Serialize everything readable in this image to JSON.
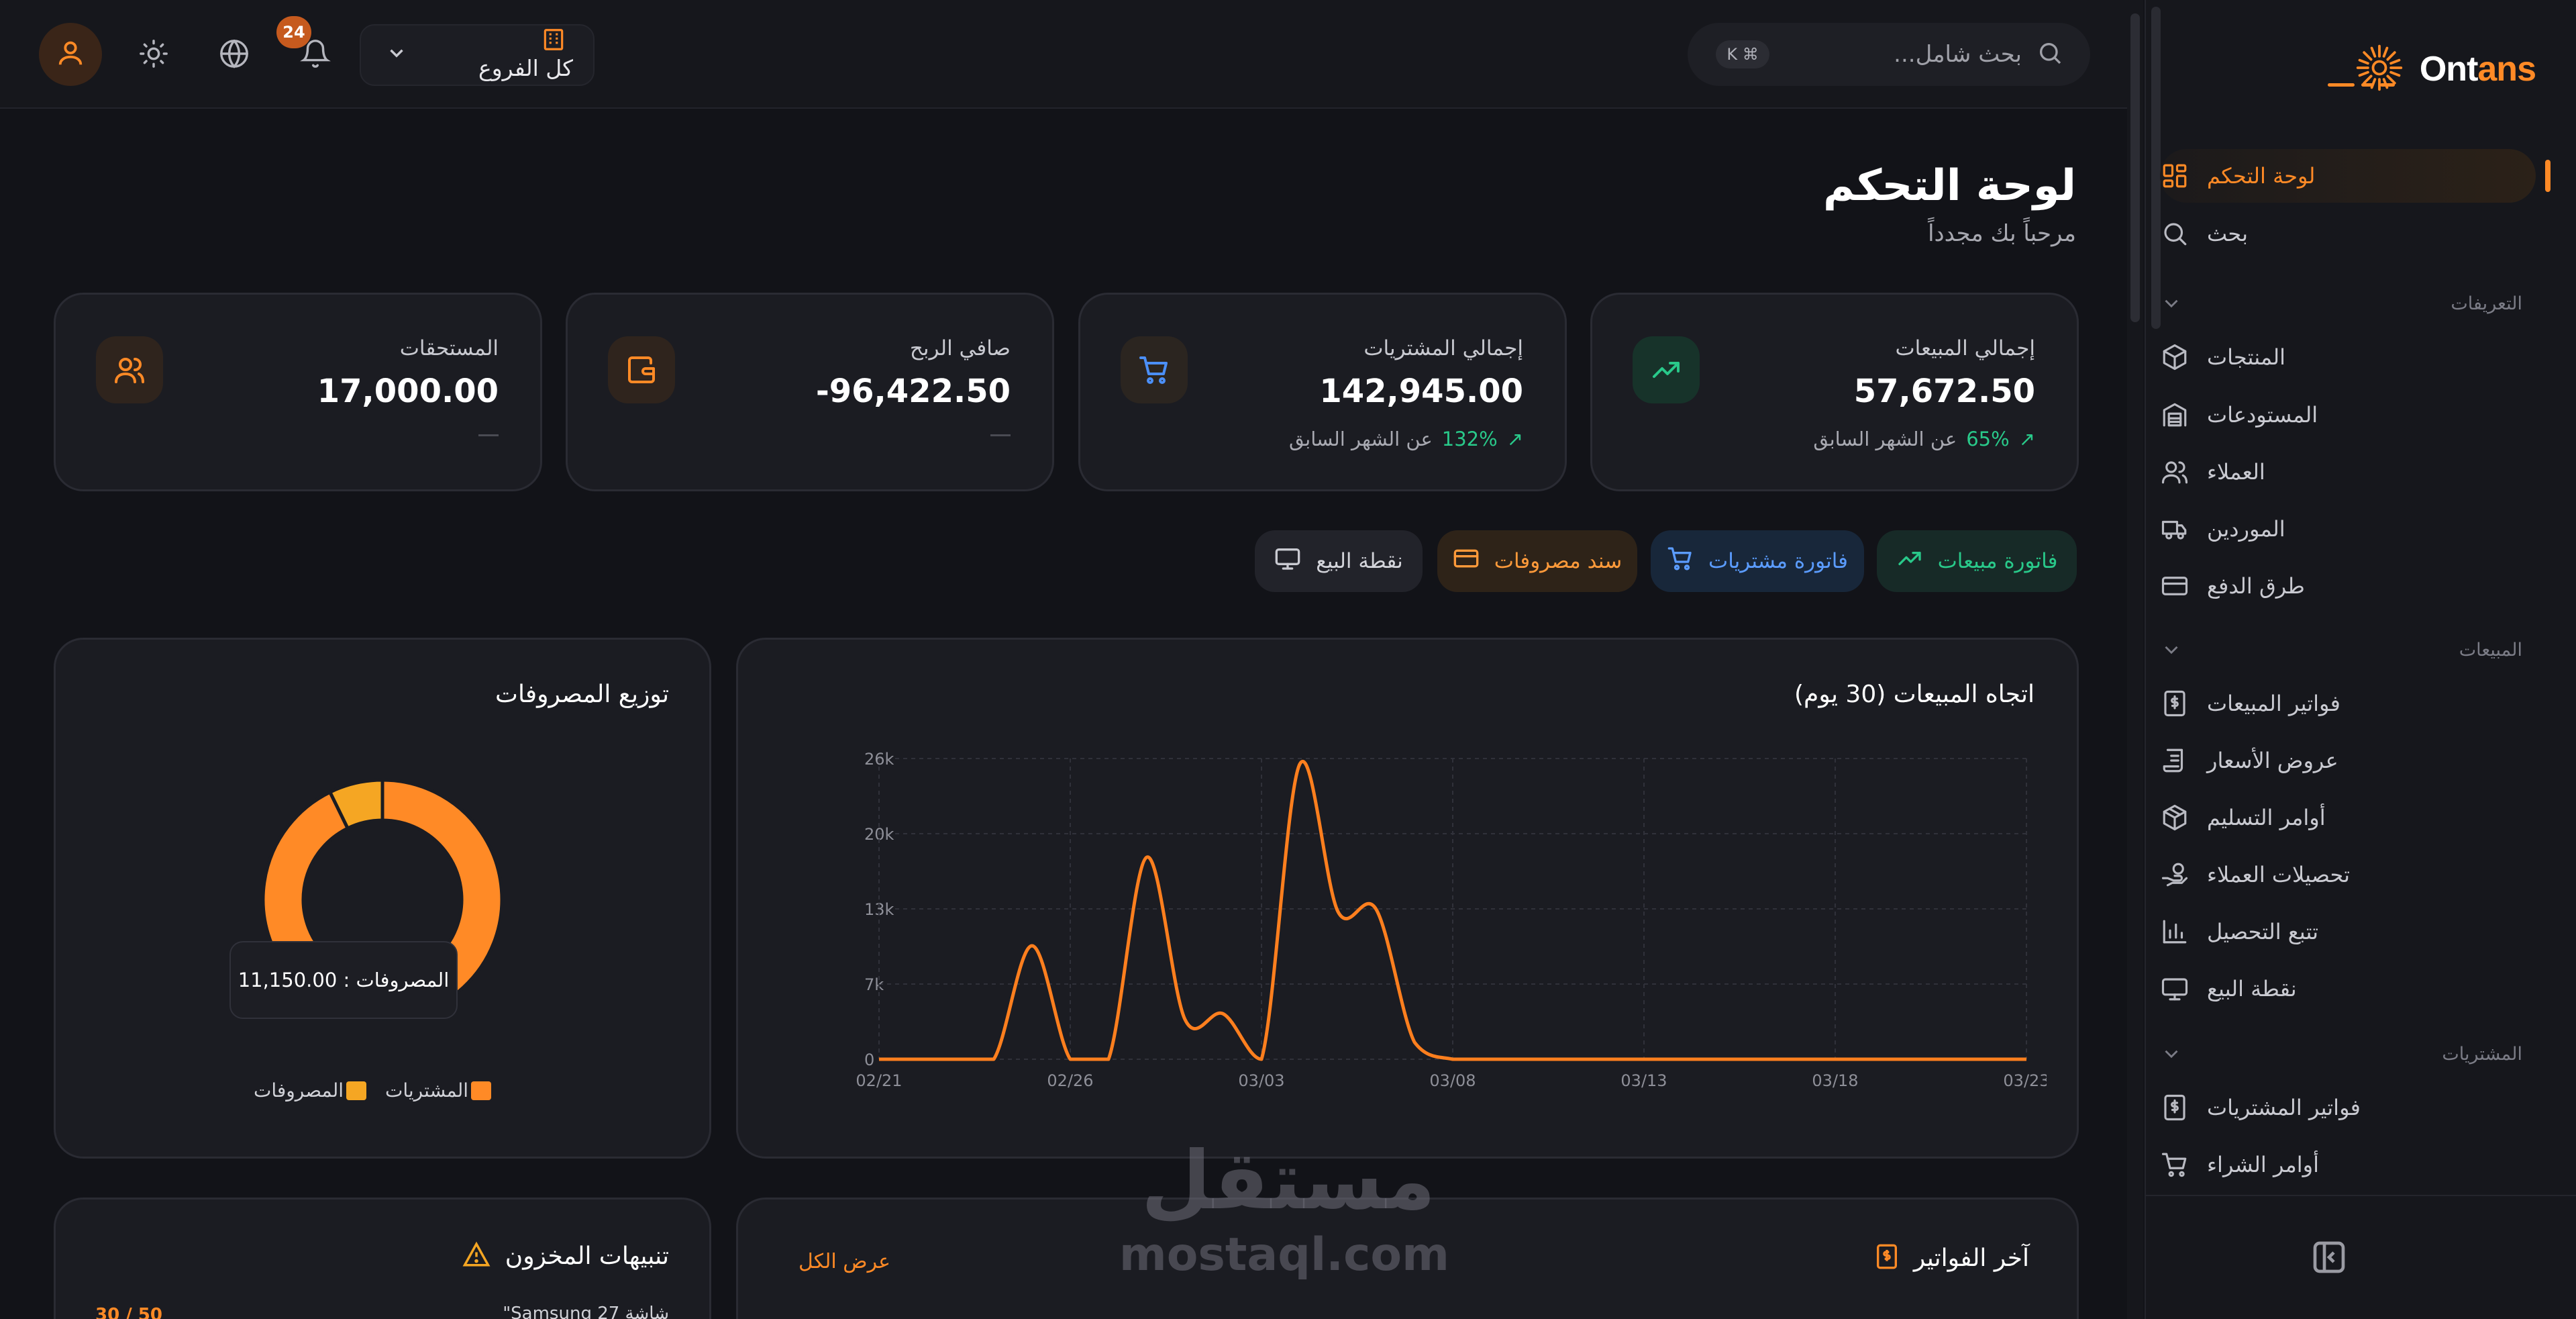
{
  "brand": {
    "part1": "Ont",
    "part2": "ans"
  },
  "header": {
    "search_placeholder": "بحث شامل...",
    "shortcut": "⌘ K",
    "branch_label": "كل الفروع",
    "notifications_count": "24"
  },
  "sidebar": {
    "items_top": [
      {
        "label": "لوحة التحكم",
        "icon": "dashboard-icon"
      },
      {
        "label": "بحث",
        "icon": "search-icon"
      }
    ],
    "sections": [
      {
        "title": "التعريفات",
        "items": [
          {
            "label": "المنتجات",
            "icon": "box-icon"
          },
          {
            "label": "المستودعات",
            "icon": "warehouse-icon"
          },
          {
            "label": "العملاء",
            "icon": "users-icon"
          },
          {
            "label": "الموردين",
            "icon": "truck-icon"
          },
          {
            "label": "طرق الدفع",
            "icon": "card-icon"
          }
        ]
      },
      {
        "title": "المبيعات",
        "items": [
          {
            "label": "فواتير المبيعات",
            "icon": "invoice-icon"
          },
          {
            "label": "عروض الأسعار",
            "icon": "scroll-icon"
          },
          {
            "label": "أوامر التسليم",
            "icon": "package-icon"
          },
          {
            "label": "تحصيلات العملاء",
            "icon": "hand-coin-icon"
          },
          {
            "label": "تتبع التحصيل",
            "icon": "bar-chart-icon"
          },
          {
            "label": "نقطة البيع",
            "icon": "monitor-icon"
          }
        ]
      },
      {
        "title": "المشتريات",
        "items": [
          {
            "label": "فواتير المشتريات",
            "icon": "invoice-icon"
          },
          {
            "label": "أوامر الشراء",
            "icon": "cart-icon"
          }
        ]
      }
    ]
  },
  "page": {
    "title": "لوحة التحكم",
    "subtitle": "مرحباً بك مجدداً"
  },
  "kpis": [
    {
      "label": "إجمالي المبيعات",
      "value": "57,672.50",
      "change": "65%",
      "change_suffix": "عن الشهر السابق",
      "icon": "trending-up-icon",
      "color": "#29c98a"
    },
    {
      "label": "إجمالي المشتريات",
      "value": "142,945.00",
      "change": "132%",
      "change_suffix": "عن الشهر السابق",
      "icon": "cart-icon",
      "color": "#4b8ff7"
    },
    {
      "label": "صافي الربح",
      "value": "-96,422.50",
      "change": "",
      "change_suffix": "",
      "icon": "wallet-icon",
      "color": "#ff8a26"
    },
    {
      "label": "المستحقات",
      "value": "17,000.00",
      "change": "",
      "change_suffix": "",
      "icon": "users-icon",
      "color": "#ff8a26"
    }
  ],
  "quick_actions": [
    {
      "label": "فاتورة مبيعات",
      "icon": "trending-up-icon",
      "color": "#29c98a"
    },
    {
      "label": "فاتورة مشتريات",
      "icon": "cart-icon",
      "color": "#5b9cff"
    },
    {
      "label": "سند مصروفات",
      "icon": "card-icon",
      "color": "#ff9a3a"
    },
    {
      "label": "نقطة البيع",
      "icon": "monitor-icon",
      "color": "#c9cad1"
    }
  ],
  "sales_trend": {
    "title": "اتجاه المبيعات (30 يوم)"
  },
  "expenses": {
    "title": "توزيع المصروفات",
    "tooltip": "المصروفات : 11,150.00",
    "legend": [
      {
        "label": "المشتريات",
        "color": "#ff8a26"
      },
      {
        "label": "المصروفات",
        "color": "#f5a623"
      }
    ]
  },
  "stock_alerts": {
    "title": "تنبيهات المخزون",
    "first_item": "شاشة Samsung 27\"",
    "first_qty": "50 / 30"
  },
  "latest_invoices": {
    "title": "آخر الفواتير",
    "view_all": "عرض الكل"
  },
  "watermark": {
    "line1": "مستقل",
    "line2": "mostaql.com"
  },
  "chart_data": [
    {
      "type": "line",
      "title": "اتجاه المبيعات (30 يوم)",
      "x_tick_labels": [
        "02/21",
        "02/26",
        "03/03",
        "03/08",
        "03/13",
        "03/18",
        "03/23"
      ],
      "y_tick_labels": [
        "0",
        "7k",
        "13k",
        "20k",
        "26k"
      ],
      "ylim": [
        0,
        26500
      ],
      "x": [
        "02/21",
        "02/22",
        "02/23",
        "02/24",
        "02/25",
        "02/26",
        "02/27",
        "02/28",
        "03/01",
        "03/02",
        "03/03",
        "03/04",
        "03/05",
        "03/06",
        "03/07",
        "03/08",
        "03/09",
        "03/10",
        "03/11",
        "03/12",
        "03/13",
        "03/14",
        "03/15",
        "03/16",
        "03/17",
        "03/18",
        "03/19",
        "03/20",
        "03/21",
        "03/22",
        "03/23"
      ],
      "series": [
        {
          "color": "#ff7f1e",
          "values": [
            0,
            0,
            0,
            0,
            10000,
            0,
            0,
            17800,
            3500,
            4000,
            0,
            26000,
            13000,
            13200,
            1500,
            0,
            0,
            0,
            0,
            0,
            0,
            0,
            0,
            0,
            0,
            0,
            0,
            0,
            0,
            0,
            0
          ]
        }
      ],
      "grid": true
    },
    {
      "type": "pie",
      "title": "توزيع المصروفات",
      "categories": [
        "المشتريات",
        "المصروفات"
      ],
      "values": [
        142945,
        11150
      ],
      "colors": [
        "#ff8a26",
        "#f5a623"
      ]
    }
  ]
}
